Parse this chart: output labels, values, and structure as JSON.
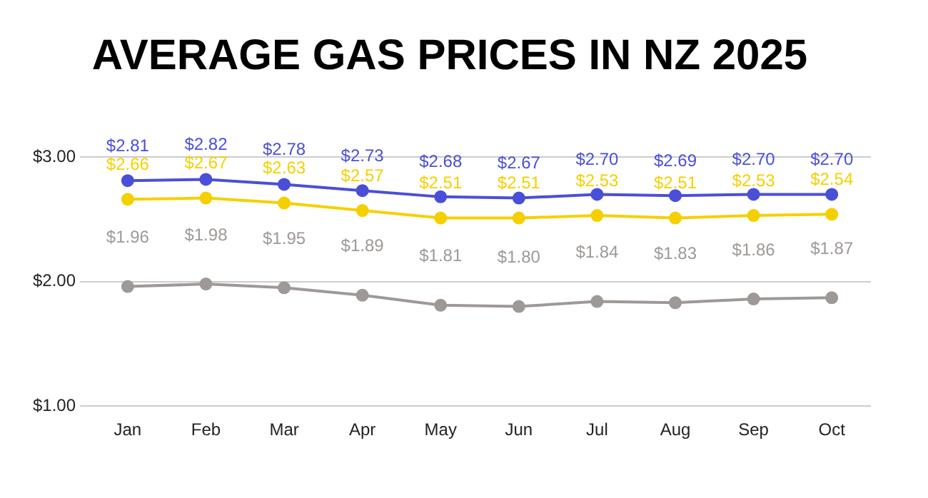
{
  "chart_data": {
    "type": "line",
    "title": "AVERAGE GAS PRICES IN NZ 2025",
    "categories": [
      "Jan",
      "Feb",
      "Mar",
      "Apr",
      "May",
      "Jun",
      "Jul",
      "Aug",
      "Sep",
      "Oct"
    ],
    "series": [
      {
        "color": "#4a4fd8",
        "values": [
          2.81,
          2.82,
          2.78,
          2.73,
          2.68,
          2.67,
          2.7,
          2.69,
          2.7,
          2.7
        ],
        "value_labels": [
          "$2.81",
          "$2.82",
          "$2.78",
          "$2.73",
          "$2.68",
          "$2.67",
          "$2.70",
          "$2.69",
          "$2.70",
          "$2.70"
        ]
      },
      {
        "color": "#f5d000",
        "values": [
          2.66,
          2.67,
          2.63,
          2.57,
          2.51,
          2.51,
          2.53,
          2.51,
          2.53,
          2.54
        ],
        "value_labels": [
          "$2.66",
          "$2.67",
          "$2.63",
          "$2.57",
          "$2.51",
          "$2.51",
          "$2.53",
          "$2.51",
          "$2.53",
          "$2.54"
        ]
      },
      {
        "color": "#9e9996",
        "values": [
          1.96,
          1.98,
          1.95,
          1.89,
          1.81,
          1.8,
          1.84,
          1.83,
          1.86,
          1.87
        ],
        "value_labels": [
          "$1.96",
          "$1.98",
          "$1.95",
          "$1.89",
          "$1.81",
          "$1.80",
          "$1.84",
          "$1.83",
          "$1.86",
          "$1.87"
        ]
      }
    ],
    "ylim": [
      1,
      3
    ],
    "yticks": [
      {
        "value": 1,
        "label": "$1.00"
      },
      {
        "value": 2,
        "label": "$2.00"
      },
      {
        "value": 3,
        "label": "$3.00"
      }
    ],
    "grid": "y",
    "legend": false,
    "marker": "circle",
    "line_style": "solid"
  }
}
